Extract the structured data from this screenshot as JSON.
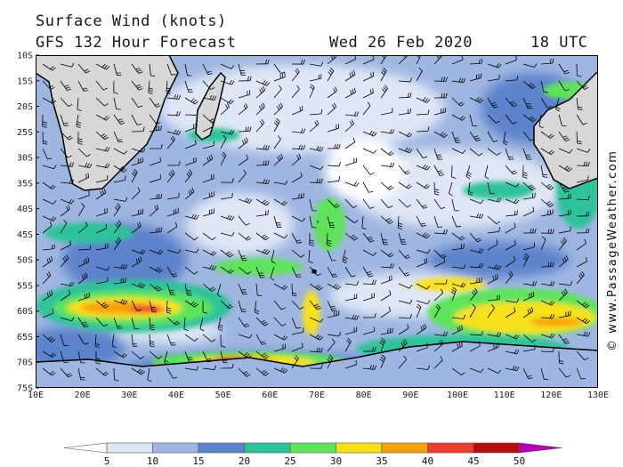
{
  "header": {
    "line1": "Surface Wind (knots)",
    "line2": "GFS 132 Hour Forecast",
    "date": "Wed 26 Feb 2020",
    "time": "18 UTC"
  },
  "credit": "© www.PassageWeather.com",
  "map": {
    "lon_range": [
      10,
      130
    ],
    "lat_range": [
      -10,
      -75
    ],
    "lat_ticks": [
      "10S",
      "15S",
      "20S",
      "25S",
      "30S",
      "35S",
      "40S",
      "45S",
      "50S",
      "55S",
      "60S",
      "65S",
      "70S",
      "75S"
    ],
    "lon_ticks": [
      "10E",
      "20E",
      "30E",
      "40E",
      "50E",
      "60E",
      "70E",
      "80E",
      "90E",
      "100E",
      "110E",
      "120E",
      "130E"
    ]
  },
  "legend": {
    "unit": "knots",
    "bins": [
      {
        "label": "5",
        "color": "#ffffff"
      },
      {
        "label": "10",
        "color": "#dfe7f6"
      },
      {
        "label": "15",
        "color": "#9fb6e2"
      },
      {
        "label": "20",
        "color": "#5d83cc"
      },
      {
        "label": "25",
        "color": "#2ec39a"
      },
      {
        "label": "30",
        "color": "#5fe35c"
      },
      {
        "label": "35",
        "color": "#f7e11a"
      },
      {
        "label": "40",
        "color": "#f7a20f"
      },
      {
        "label": "45",
        "color": "#ec3d2f"
      },
      {
        "label": "50",
        "color": "#b30d0d"
      },
      {
        "label": "",
        "color": "#b300b3"
      }
    ]
  },
  "colors": {
    "land": "#d7d7d7",
    "coast": "#000000",
    "barb": "#000000"
  }
}
